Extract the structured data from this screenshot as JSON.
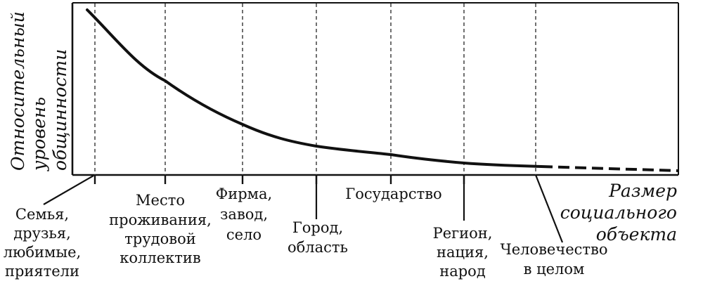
{
  "chart_data": {
    "type": "line",
    "y_axis_label_lines": [
      "Относительный",
      "уровень",
      "общинности"
    ],
    "x_axis_label_lines": [
      "Размер",
      "социального",
      "объекта"
    ],
    "categories": [
      {
        "lines": [
          "Семья,",
          "друзья,",
          "любимые,",
          "приятели"
        ]
      },
      {
        "lines": [
          "Место",
          "проживания,",
          "трудовой",
          "коллектив"
        ]
      },
      {
        "lines": [
          "Фирма,",
          "завод,",
          "село"
        ]
      },
      {
        "lines": [
          "Город,",
          "область"
        ]
      },
      {
        "lines": [
          "Государство"
        ]
      },
      {
        "lines": [
          "Регион,",
          "нация,",
          "народ"
        ]
      },
      {
        "lines": [
          "Человечество",
          "в целом"
        ]
      }
    ],
    "curve": "decreasing",
    "curve_extrapolated_dashed": true,
    "grid": "vertical dashed"
  },
  "colors": {
    "ink": "#111111",
    "background": "#ffffff"
  }
}
